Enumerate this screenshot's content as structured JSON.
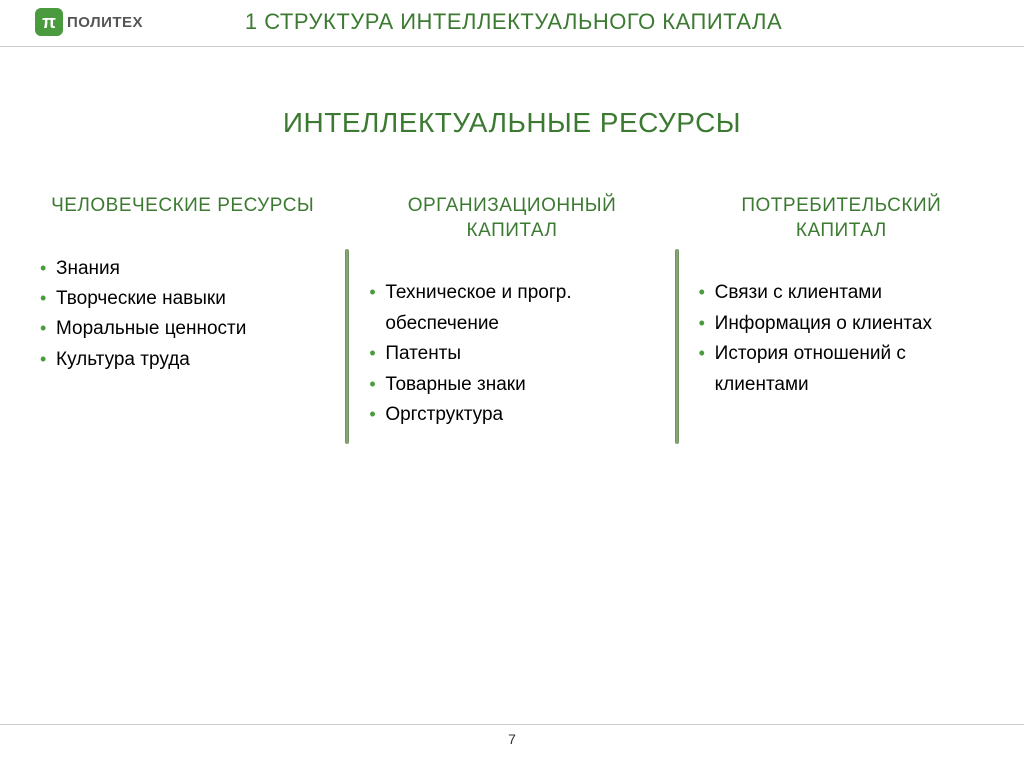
{
  "logo": {
    "symbol": "π",
    "text": "ПОЛИТЕХ"
  },
  "slide_title": "1 СТРУКТУРА ИНТЕЛЛЕКТУАЛЬНОГО КАПИТАЛА",
  "subtitle": "ИНТЕЛЛЕКТУАЛЬНЫЕ РЕСУРСЫ",
  "columns": [
    {
      "title": "ЧЕЛОВЕЧЕСКИЕ РЕСУРСЫ",
      "items": [
        "Знания",
        "Творческие навыки",
        "Моральные ценности",
        "Культура труда"
      ]
    },
    {
      "title": "ОРГАНИЗАЦИОННЫЙ КАПИТАЛ",
      "items": [
        "Техническое и прогр. обеспечение",
        "Патенты",
        "Товарные знаки",
        "Оргструктура"
      ]
    },
    {
      "title": "ПОТРЕБИТЕЛЬСКИЙ КАПИТАЛ",
      "items": [
        "Связи с клиентами",
        "Информация о клиентах",
        "История отношений с клиентами"
      ]
    }
  ],
  "page_number": "7",
  "colors": {
    "accent_green": "#3c7a32",
    "bullet_green": "#4a9b3e",
    "divider": "#7a9a6a",
    "text": "#000000",
    "background": "#ffffff",
    "border": "#cccccc"
  }
}
